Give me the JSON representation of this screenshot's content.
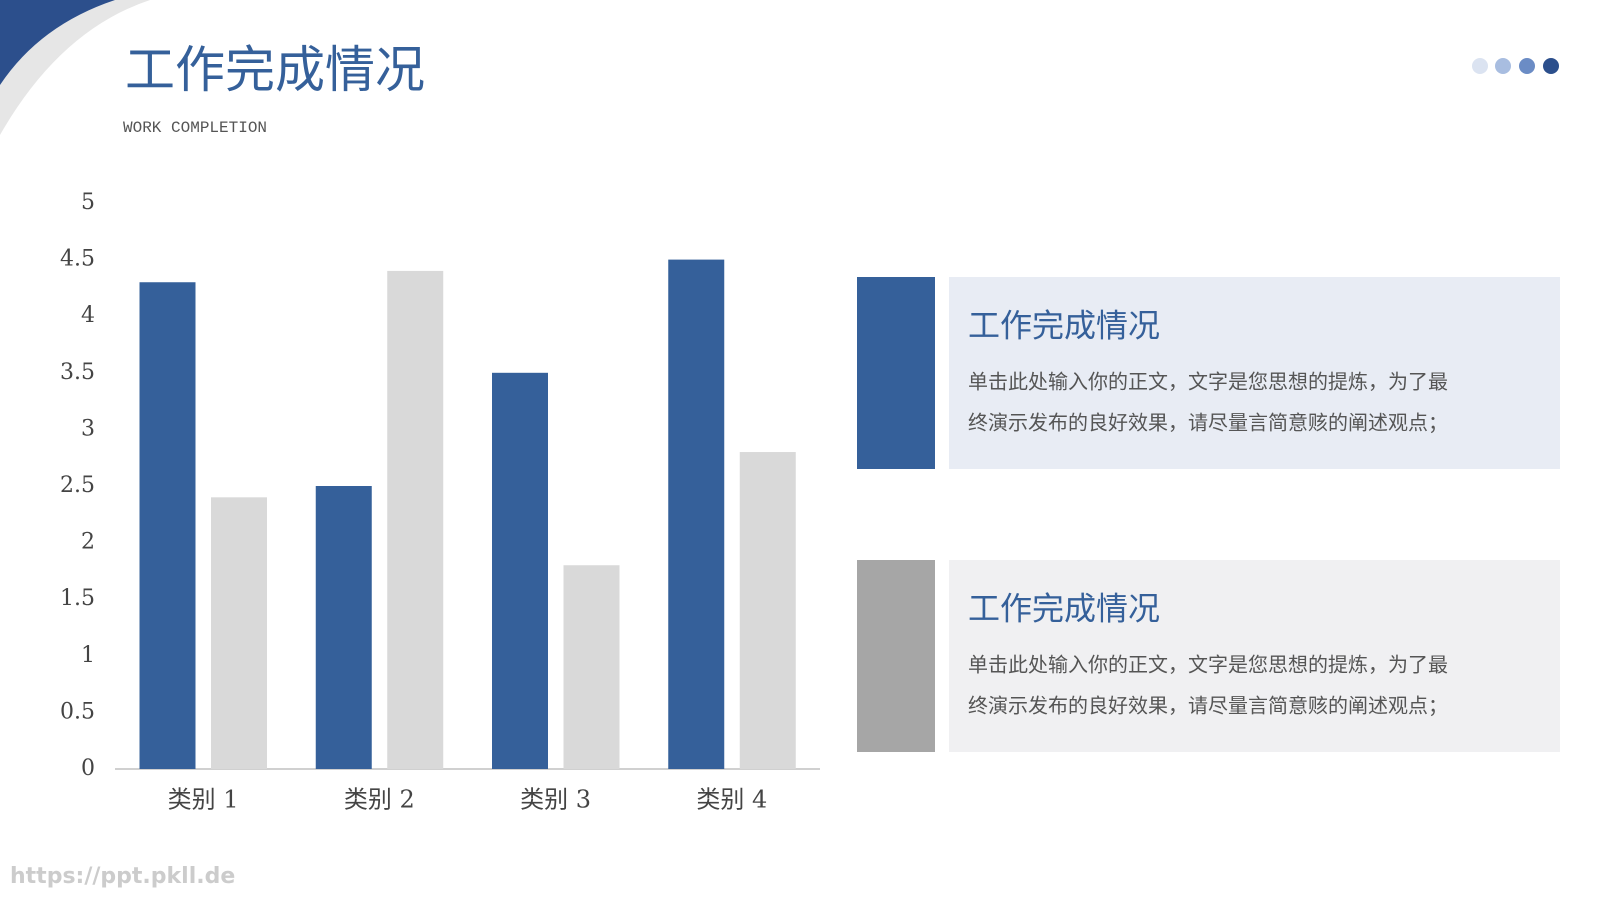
{
  "header": {
    "title": "工作完成情况",
    "subtitle": "WORK COMPLETION"
  },
  "chart_data": {
    "type": "bar",
    "categories": [
      "类别 1",
      "类别 2",
      "类别 3",
      "类别 4"
    ],
    "series": [
      {
        "color": "#35609a",
        "values": [
          4.3,
          2.5,
          3.5,
          4.5
        ]
      },
      {
        "color": "#d9d9d9",
        "values": [
          2.4,
          4.4,
          1.8,
          2.8
        ]
      }
    ],
    "ylim": [
      0,
      5
    ],
    "yticks": [
      0,
      0.5,
      1,
      1.5,
      2,
      2.5,
      3,
      3.5,
      4,
      4.5,
      5
    ],
    "grid": false
  },
  "cards": [
    {
      "title": "工作完成情况",
      "lines": [
        "单击此处输入你的正文，文字是您思想的提炼，为了最",
        "终演示发布的良好效果，请尽量言简意赅的阐述观点；"
      ]
    },
    {
      "title": "工作完成情况",
      "lines": [
        "单击此处输入你的正文，文字是您思想的提炼，为了最",
        "终演示发布的良好效果，请尽量言简意赅的阐述观点；"
      ]
    }
  ],
  "watermark": "https://ppt.pkll.de"
}
